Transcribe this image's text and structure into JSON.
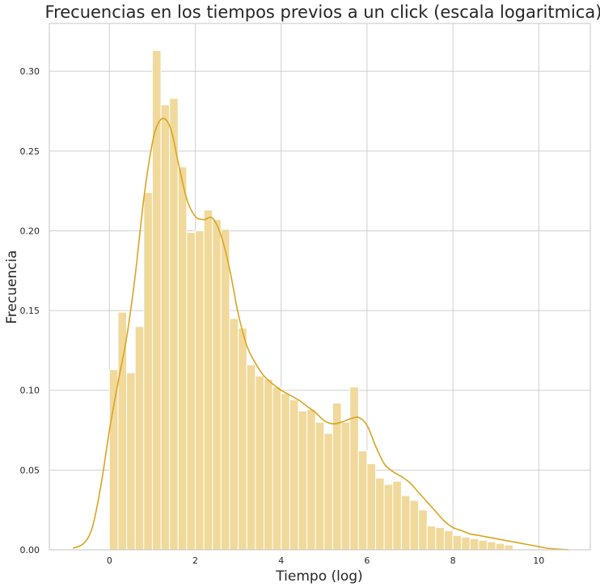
{
  "chart_data": {
    "type": "bar",
    "title": "Frecuencias en los tiempos previos a un click (escala logaritmica)",
    "xlabel": "Tiempo (log)",
    "ylabel": "Frecuencia",
    "xlim": [
      -1.4,
      11.2
    ],
    "ylim": [
      0,
      0.33
    ],
    "xticks": [
      0,
      2,
      4,
      6,
      8,
      10
    ],
    "xtick_labels": [
      "0",
      "2",
      "4",
      "6",
      "8",
      "10"
    ],
    "yticks": [
      0.0,
      0.05,
      0.1,
      0.15,
      0.2,
      0.25,
      0.3
    ],
    "ytick_labels": [
      "0.00",
      "0.05",
      "0.10",
      "0.15",
      "0.20",
      "0.25",
      "0.30"
    ],
    "grid": true,
    "bar_color": "#f0d99a",
    "line_color": "#daa520",
    "histogram": {
      "bin_start": 0.0,
      "bin_width": 0.2,
      "values": [
        0.113,
        0.149,
        0.111,
        0.14,
        0.224,
        0.313,
        0.279,
        0.283,
        0.24,
        0.199,
        0.2,
        0.213,
        0.207,
        0.201,
        0.145,
        0.139,
        0.116,
        0.109,
        0.107,
        0.102,
        0.098,
        0.094,
        0.087,
        0.088,
        0.08,
        0.073,
        0.092,
        0.08,
        0.102,
        0.062,
        0.054,
        0.045,
        0.041,
        0.043,
        0.034,
        0.031,
        0.025,
        0.015,
        0.014,
        0.012,
        0.009,
        0.008,
        0.007,
        0.006,
        0.005,
        0.004,
        0.003
      ]
    },
    "kde": {
      "x": [
        -0.85,
        -0.6,
        -0.4,
        -0.2,
        0.0,
        0.2,
        0.4,
        0.6,
        0.8,
        1.0,
        1.15,
        1.3,
        1.45,
        1.6,
        1.8,
        2.0,
        2.2,
        2.4,
        2.6,
        2.8,
        3.0,
        3.2,
        3.4,
        3.6,
        3.8,
        4.0,
        4.2,
        4.4,
        4.6,
        4.8,
        5.0,
        5.2,
        5.4,
        5.6,
        5.8,
        6.0,
        6.2,
        6.4,
        6.6,
        6.8,
        7.0,
        7.2,
        7.4,
        7.6,
        7.8,
        8.0,
        8.2,
        8.4,
        8.6,
        8.8,
        9.0,
        9.2,
        9.4,
        9.6,
        9.8,
        10.0,
        10.2,
        10.4,
        10.7
      ],
      "y": [
        0.001,
        0.004,
        0.014,
        0.04,
        0.075,
        0.105,
        0.133,
        0.172,
        0.22,
        0.255,
        0.268,
        0.27,
        0.262,
        0.243,
        0.22,
        0.209,
        0.207,
        0.208,
        0.197,
        0.176,
        0.148,
        0.128,
        0.117,
        0.109,
        0.104,
        0.1,
        0.097,
        0.094,
        0.09,
        0.086,
        0.081,
        0.079,
        0.08,
        0.082,
        0.083,
        0.078,
        0.065,
        0.054,
        0.049,
        0.046,
        0.042,
        0.036,
        0.03,
        0.024,
        0.018,
        0.014,
        0.012,
        0.01,
        0.009,
        0.008,
        0.007,
        0.006,
        0.005,
        0.004,
        0.003,
        0.002,
        0.001,
        0.0005,
        0.0
      ]
    }
  }
}
